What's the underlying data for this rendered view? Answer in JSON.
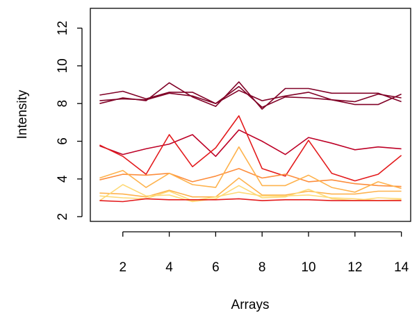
{
  "chart_data": {
    "type": "line",
    "title": "",
    "xlabel": "Arrays",
    "ylabel": "Intensity",
    "x": [
      1,
      2,
      3,
      4,
      5,
      6,
      7,
      8,
      9,
      10,
      11,
      12,
      13,
      14
    ],
    "xlim": [
      0.6,
      14.4
    ],
    "ylim": [
      1.75,
      13.05
    ],
    "x_ticks": [
      2,
      4,
      6,
      8,
      10,
      12,
      14
    ],
    "x_tick_labels": [
      "2",
      "4",
      "6",
      "8",
      "10",
      "12",
      "14"
    ],
    "y_ticks": [
      2,
      4,
      6,
      8,
      10,
      12
    ],
    "y_tick_labels": [
      "2",
      "4",
      "6",
      "8",
      "10",
      "12"
    ],
    "grid": false,
    "legend": "none",
    "series": [
      {
        "color": "#800026",
        "values": [
          8.45,
          8.65,
          8.25,
          8.6,
          8.6,
          8.0,
          8.9,
          7.8,
          8.35,
          8.3,
          8.2,
          8.1,
          8.5,
          8.3
        ]
      },
      {
        "color": "#800026",
        "values": [
          8.0,
          8.3,
          8.15,
          9.1,
          8.35,
          7.85,
          9.15,
          7.7,
          8.8,
          8.8,
          8.55,
          8.55,
          8.55,
          8.1
        ]
      },
      {
        "color": "#800026",
        "values": [
          8.15,
          8.25,
          8.2,
          8.55,
          8.4,
          8.0,
          8.7,
          8.15,
          8.4,
          8.6,
          8.2,
          7.95,
          7.95,
          8.5
        ]
      },
      {
        "color": "#bd0026",
        "values": [
          5.75,
          5.3,
          5.6,
          5.85,
          6.35,
          5.2,
          6.6,
          6.0,
          5.3,
          6.2,
          5.9,
          5.55,
          5.7,
          5.6
        ]
      },
      {
        "color": "#e31a1c",
        "values": [
          5.8,
          5.2,
          4.25,
          6.35,
          4.65,
          5.65,
          7.35,
          4.55,
          4.15,
          6.05,
          4.3,
          3.9,
          4.25,
          5.25
        ]
      },
      {
        "color": "#fd8d3c",
        "values": [
          3.95,
          4.25,
          4.2,
          4.3,
          3.85,
          4.15,
          4.55,
          4.05,
          4.25,
          3.85,
          3.95,
          3.75,
          3.65,
          3.6
        ]
      },
      {
        "color": "#feb24c",
        "values": [
          4.05,
          4.45,
          3.55,
          4.3,
          3.7,
          3.55,
          5.7,
          3.65,
          3.65,
          4.2,
          3.55,
          3.3,
          3.85,
          3.5
        ]
      },
      {
        "color": "#feb24c",
        "values": [
          3.25,
          3.2,
          3.05,
          3.4,
          3.05,
          3.05,
          4.05,
          3.15,
          3.15,
          3.35,
          3.2,
          3.2,
          3.35,
          3.35
        ]
      },
      {
        "color": "#fed976",
        "values": [
          2.85,
          3.7,
          3.1,
          3.15,
          2.8,
          2.95,
          3.65,
          3.0,
          3.05,
          3.45,
          2.95,
          2.85,
          3.0,
          2.95
        ]
      },
      {
        "color": "#fed976",
        "values": [
          3.1,
          3.0,
          2.95,
          3.35,
          2.85,
          3.05,
          3.3,
          3.1,
          3.1,
          3.15,
          3.0,
          2.95,
          2.85,
          2.9
        ]
      },
      {
        "color": "#e31a1c",
        "values": [
          2.85,
          2.8,
          2.95,
          2.9,
          2.9,
          2.9,
          2.95,
          2.85,
          2.9,
          2.9,
          2.85,
          2.85,
          2.85,
          2.85
        ]
      }
    ]
  }
}
